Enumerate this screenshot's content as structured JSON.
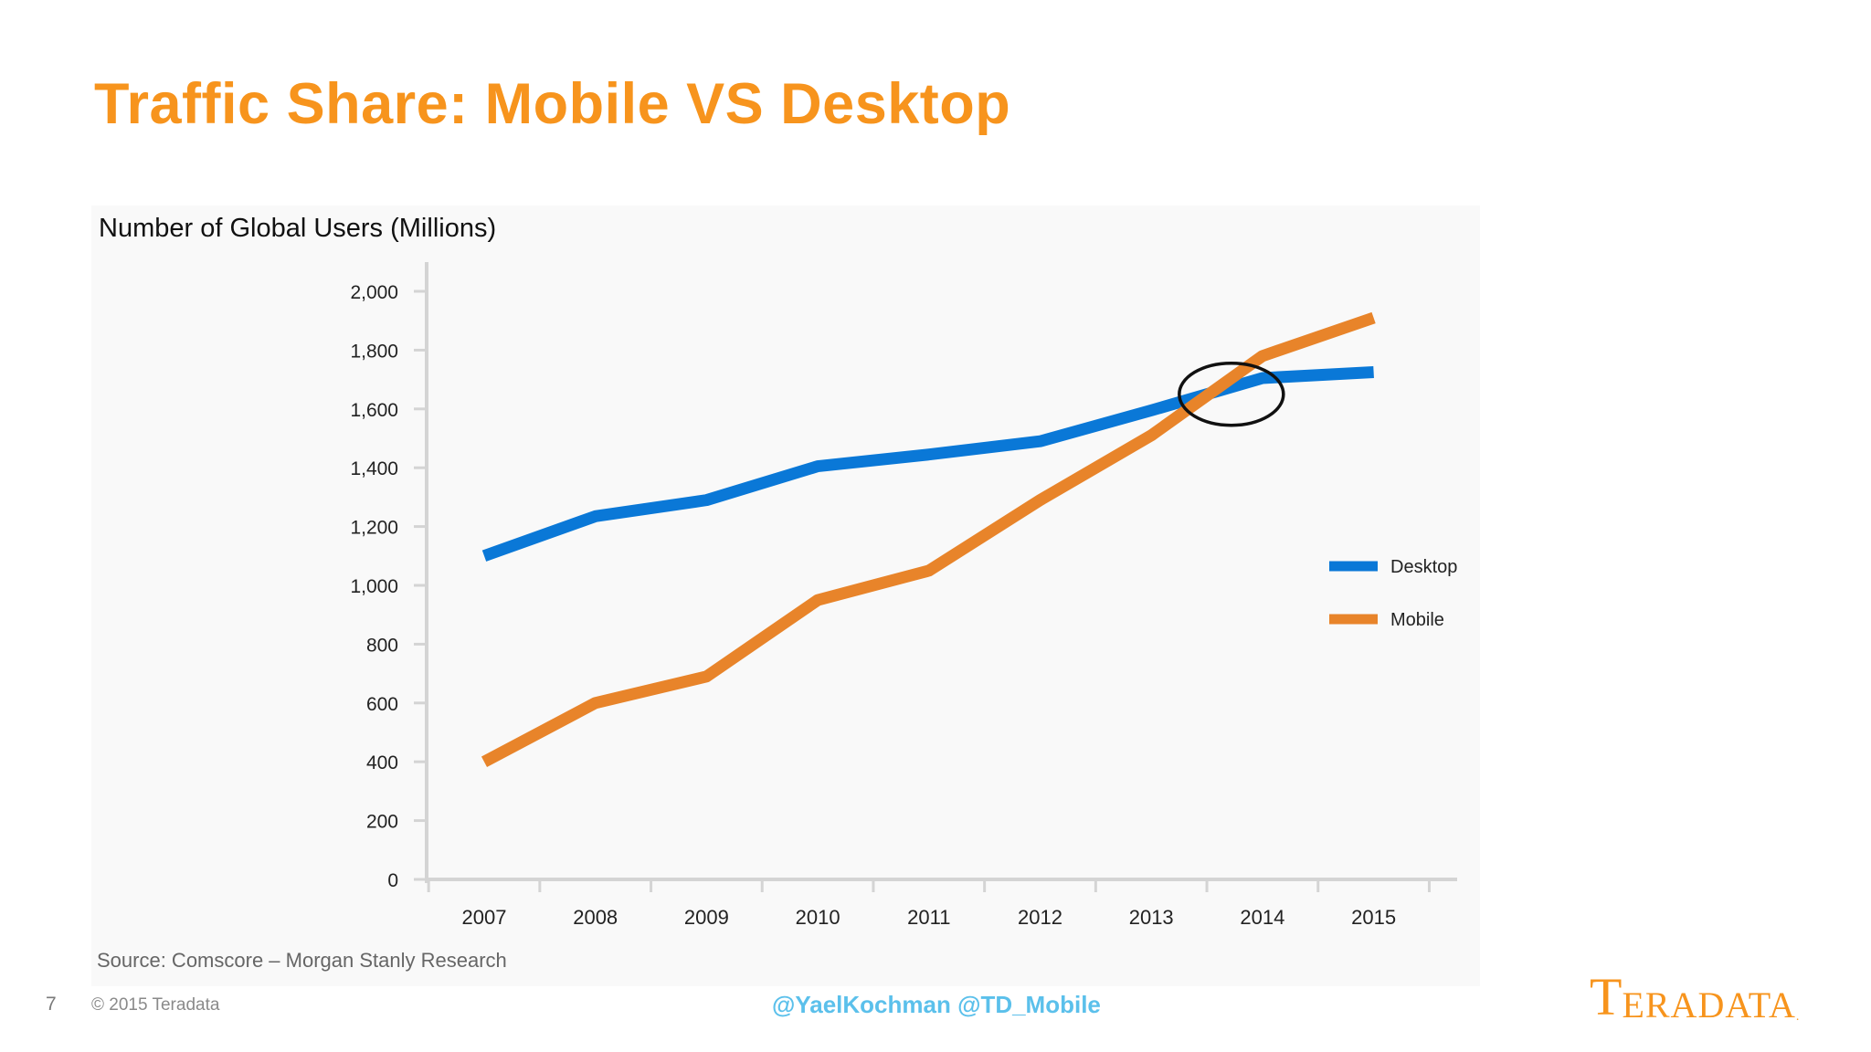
{
  "slide": {
    "title": "Traffic Share: Mobile VS Desktop",
    "source": "Source: Comscore – Morgan Stanly Research",
    "page_number": "7",
    "copyright": "© 2015 Teradata",
    "handles": "@YaelKochman @TD_Mobile",
    "logo": {
      "first": "T",
      "rest": "ERADATA",
      "dot": "."
    }
  },
  "colors": {
    "title": "#f7941d",
    "desktop": "#0a78d7",
    "mobile": "#e8842a",
    "handles": "#5bc0eb",
    "axis": "#d4d4d4"
  },
  "chart_data": {
    "type": "line",
    "title": "Number of Global Users (Millions)",
    "xlabel": "",
    "ylabel": "",
    "x": [
      "2007",
      "2008",
      "2009",
      "2010",
      "2011",
      "2012",
      "2013",
      "2014",
      "2015"
    ],
    "series": [
      {
        "name": "Desktop",
        "color": "#0a78d7",
        "values": [
          1100,
          1235,
          1290,
          1405,
          1445,
          1490,
          1595,
          1705,
          1725
        ]
      },
      {
        "name": "Mobile",
        "color": "#e8842a",
        "values": [
          400,
          600,
          690,
          950,
          1050,
          1290,
          1510,
          1780,
          1910
        ]
      }
    ],
    "ylim": [
      0,
      2000
    ],
    "yticks": [
      "0",
      "200",
      "400",
      "600",
      "800",
      "1,000",
      "1,200",
      "1,400",
      "1,600",
      "1,800",
      "2,000"
    ],
    "ytick_values": [
      0,
      200,
      400,
      600,
      800,
      1000,
      1200,
      1400,
      1600,
      1800,
      2000
    ],
    "grid": false,
    "legend_position": "right",
    "annotation": {
      "type": "ellipse",
      "x": "2013.72",
      "y": 1650,
      "description": "crossover highlight"
    }
  }
}
